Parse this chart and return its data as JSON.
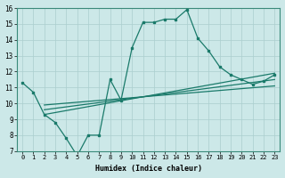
{
  "xlabel": "Humidex (Indice chaleur)",
  "bg_color": "#cce8e8",
  "line_color": "#1a7a6a",
  "grid_color": "#aacece",
  "xlim": [
    -0.5,
    23.5
  ],
  "ylim": [
    7,
    16
  ],
  "xticks": [
    0,
    1,
    2,
    3,
    4,
    5,
    6,
    7,
    8,
    9,
    10,
    11,
    12,
    13,
    14,
    15,
    16,
    17,
    18,
    19,
    20,
    21,
    22,
    23
  ],
  "yticks": [
    7,
    8,
    9,
    10,
    11,
    12,
    13,
    14,
    15,
    16
  ],
  "main_line_x": [
    0,
    1,
    2,
    3,
    4,
    5,
    6,
    7,
    8,
    9,
    10,
    11,
    12,
    13,
    14,
    15,
    16,
    17,
    18,
    19,
    20,
    21,
    22,
    23
  ],
  "main_line_y": [
    11.3,
    10.7,
    9.3,
    8.8,
    7.8,
    6.7,
    8.0,
    8.0,
    11.5,
    10.2,
    13.5,
    15.1,
    15.1,
    15.3,
    15.3,
    15.9,
    14.1,
    13.3,
    12.3,
    11.8,
    11.5,
    11.2,
    11.4,
    11.8
  ],
  "line2_x": [
    2,
    23
  ],
  "line2_y": [
    9.3,
    11.9
  ],
  "line3_x": [
    2,
    23
  ],
  "line3_y": [
    9.6,
    11.5
  ],
  "line4_x": [
    2,
    23
  ],
  "line4_y": [
    9.9,
    11.1
  ]
}
